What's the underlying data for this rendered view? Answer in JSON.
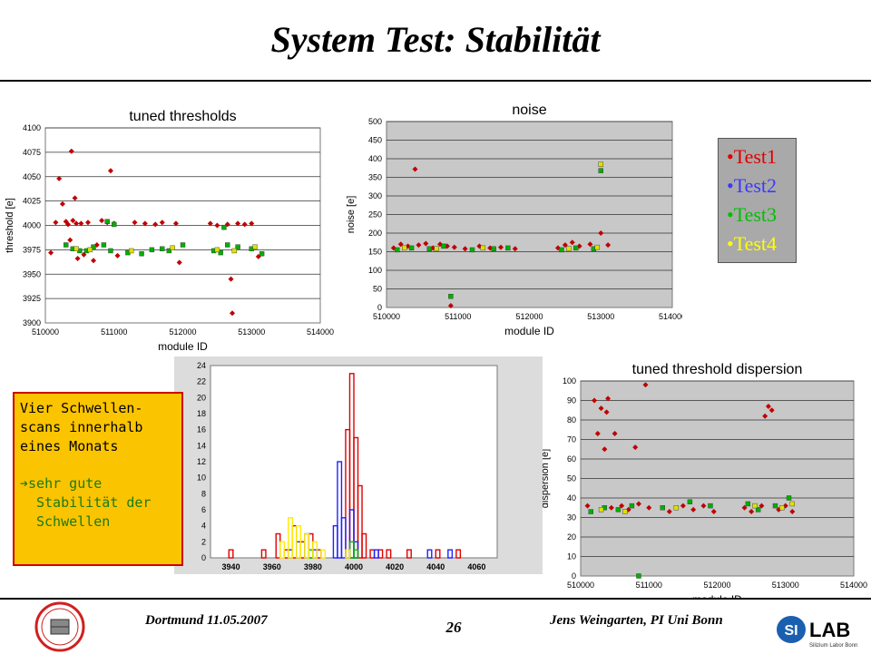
{
  "slide": {
    "title": "System Test: Stabilität",
    "footer_left": "Dortmund 11.05.2007",
    "page_number": "26",
    "footer_right": "Jens Weingarten, PI Uni Bonn",
    "logo_left_text": "ATLAS Pixel Detector Collaboration",
    "logo_right_text": "SILAB",
    "logo_right_sub": "Silizium Labor Bonn"
  },
  "legend": {
    "items": [
      {
        "label": "•Test1",
        "color": "#e00000"
      },
      {
        "label": "•Test2",
        "color": "#3a3aff"
      },
      {
        "label": "•Test3",
        "color": "#00c000"
      },
      {
        "label": "•Test4",
        "color": "#ffff00"
      }
    ]
  },
  "note": {
    "line1": "Vier Schwellen-scans innerhalb eines Monats",
    "line2": "sehr gute Stabilität der Schwellen",
    "arrow": "➔"
  },
  "chart_data": [
    {
      "type": "scatter",
      "title": "tuned thresholds",
      "xlabel": "module ID",
      "ylabel": "threshold [e]",
      "xlim": [
        510000,
        514000
      ],
      "ylim": [
        3900,
        4100
      ],
      "xticks": [
        "510000",
        "511000",
        "512000",
        "513000",
        "514000"
      ],
      "yticks": [
        "3900",
        "3925",
        "3950",
        "3975",
        "4000",
        "4025",
        "4050",
        "4075",
        "4100"
      ],
      "grid": true,
      "series": [
        {
          "color": "#c00000",
          "points": [
            [
              510080,
              3972
            ],
            [
              510150,
              4003
            ],
            [
              510200,
              4048
            ],
            [
              510250,
              4022
            ],
            [
              510300,
              4004
            ],
            [
              510330,
              4001
            ],
            [
              510360,
              3985
            ],
            [
              510380,
              4076
            ],
            [
              510400,
              4005
            ],
            [
              510430,
              4028
            ],
            [
              510450,
              4002
            ],
            [
              510470,
              3966
            ],
            [
              510520,
              4002
            ],
            [
              510560,
              3970
            ],
            [
              510620,
              4003
            ],
            [
              510700,
              3964
            ],
            [
              510750,
              3980
            ],
            [
              510820,
              4005
            ],
            [
              510900,
              4003
            ],
            [
              510950,
              4056
            ],
            [
              511000,
              4002
            ],
            [
              511050,
              3969
            ],
            [
              511300,
              4003
            ],
            [
              511450,
              4002
            ],
            [
              511600,
              4001
            ],
            [
              511700,
              4003
            ],
            [
              511900,
              4002
            ],
            [
              511950,
              3962
            ],
            [
              512400,
              4002
            ],
            [
              512500,
              4000
            ],
            [
              512650,
              4001
            ],
            [
              512700,
              3945
            ],
            [
              512720,
              3910
            ],
            [
              512800,
              4002
            ],
            [
              512900,
              4001
            ],
            [
              513000,
              4002
            ],
            [
              513100,
              3968
            ]
          ]
        },
        {
          "color": "#00b000",
          "points": [
            [
              510300,
              3980
            ],
            [
              510400,
              3976
            ],
            [
              510500,
              3974
            ],
            [
              510600,
              3974
            ],
            [
              510700,
              3978
            ],
            [
              510850,
              3980
            ],
            [
              510950,
              3974
            ],
            [
              511200,
              3972
            ],
            [
              511400,
              3971
            ],
            [
              511550,
              3975
            ],
            [
              511700,
              3976
            ],
            [
              511800,
              3974
            ],
            [
              512000,
              3980
            ],
            [
              512450,
              3974
            ],
            [
              512550,
              3972
            ],
            [
              512650,
              3980
            ],
            [
              512800,
              3978
            ],
            [
              513000,
              3976
            ],
            [
              513150,
              3971
            ],
            [
              511000,
              4001
            ],
            [
              510900,
              4004
            ],
            [
              512600,
              3998
            ]
          ]
        },
        {
          "color": "#e0e000",
          "points": [
            [
              510450,
              3976
            ],
            [
              510650,
              3975
            ],
            [
              511250,
              3974
            ],
            [
              511850,
              3977
            ],
            [
              512500,
              3975
            ],
            [
              512750,
              3974
            ],
            [
              513050,
              3978
            ]
          ]
        }
      ]
    },
    {
      "type": "scatter",
      "title": "noise",
      "xlabel": "module ID",
      "ylabel": "noise [e]",
      "xlim": [
        510000,
        514000
      ],
      "ylim": [
        0,
        500
      ],
      "xticks": [
        "510000",
        "511000",
        "512000",
        "513000",
        "514000"
      ],
      "yticks": [
        "0",
        "50",
        "100",
        "150",
        "200",
        "250",
        "300",
        "350",
        "400",
        "450",
        "500"
      ],
      "grid": true,
      "series": [
        {
          "color": "#c00000",
          "points": [
            [
              510100,
              160
            ],
            [
              510200,
              170
            ],
            [
              510300,
              165
            ],
            [
              510400,
              372
            ],
            [
              510450,
              168
            ],
            [
              510550,
              172
            ],
            [
              510650,
              160
            ],
            [
              510750,
              170
            ],
            [
              510850,
              165
            ],
            [
              510900,
              5
            ],
            [
              510950,
              162
            ],
            [
              511100,
              158
            ],
            [
              511300,
              165
            ],
            [
              511450,
              160
            ],
            [
              511600,
              162
            ],
            [
              511800,
              158
            ],
            [
              512400,
              160
            ],
            [
              512500,
              168
            ],
            [
              512600,
              175
            ],
            [
              512700,
              165
            ],
            [
              512850,
              170
            ],
            [
              513000,
              200
            ],
            [
              513100,
              168
            ]
          ]
        },
        {
          "color": "#00b000",
          "points": [
            [
              510150,
              155
            ],
            [
              510350,
              160
            ],
            [
              510600,
              158
            ],
            [
              510800,
              165
            ],
            [
              510900,
              30
            ],
            [
              511200,
              155
            ],
            [
              511500,
              158
            ],
            [
              511700,
              160
            ],
            [
              512450,
              155
            ],
            [
              512650,
              160
            ],
            [
              512900,
              158
            ],
            [
              513000,
              368
            ]
          ]
        },
        {
          "color": "#e0e000",
          "points": [
            [
              510250,
              160
            ],
            [
              510700,
              158
            ],
            [
              511350,
              160
            ],
            [
              512550,
              158
            ],
            [
              512950,
              162
            ],
            [
              513000,
              385
            ]
          ]
        }
      ]
    },
    {
      "type": "bar",
      "title": "",
      "xlabel": "",
      "ylabel": "",
      "xlim": [
        3930,
        4070
      ],
      "ylim": [
        0,
        24
      ],
      "xticks": [
        "3940",
        "3960",
        "3980",
        "4000",
        "4020",
        "4040",
        "4060"
      ],
      "yticks": [
        "0",
        "2",
        "4",
        "6",
        "8",
        "10",
        "12",
        "14",
        "16",
        "18",
        "20",
        "22",
        "24"
      ],
      "grid": false,
      "series": [
        {
          "color": "#e00000",
          "bins": [
            [
              3939,
              1
            ],
            [
              3955,
              1
            ],
            [
              3962,
              3
            ],
            [
              3966,
              1
            ],
            [
              3970,
              4
            ],
            [
              3974,
              2
            ],
            [
              3978,
              3
            ],
            [
              3982,
              1
            ],
            [
              3996,
              16
            ],
            [
              3998,
              23
            ],
            [
              4000,
              15
            ],
            [
              4002,
              9
            ],
            [
              4004,
              3
            ],
            [
              4008,
              1
            ],
            [
              4012,
              1
            ],
            [
              4016,
              1
            ],
            [
              4026,
              1
            ],
            [
              4040,
              1
            ],
            [
              4050,
              1
            ]
          ]
        },
        {
          "color": "#2020ff",
          "bins": [
            [
              3968,
              1
            ],
            [
              3972,
              2
            ],
            [
              3976,
              3
            ],
            [
              3980,
              1
            ],
            [
              3990,
              4
            ],
            [
              3992,
              12
            ],
            [
              3994,
              5
            ],
            [
              3998,
              6
            ],
            [
              4000,
              2
            ],
            [
              4010,
              1
            ],
            [
              4036,
              1
            ],
            [
              4046,
              1
            ]
          ]
        },
        {
          "color": "#00c000",
          "bins": [
            [
              3978,
              1
            ],
            [
              3998,
              2
            ],
            [
              4000,
              1
            ]
          ]
        },
        {
          "color": "#ffee00",
          "bins": [
            [
              3964,
              2
            ],
            [
              3968,
              5
            ],
            [
              3972,
              4
            ],
            [
              3976,
              3
            ],
            [
              3980,
              2
            ],
            [
              3984,
              1
            ],
            [
              3996,
              1
            ]
          ]
        }
      ]
    },
    {
      "type": "scatter",
      "title": "tuned threshold dispersion",
      "xlabel": "module ID",
      "ylabel": "dispersion [e]",
      "xlim": [
        510000,
        514000
      ],
      "ylim": [
        0,
        100
      ],
      "xticks": [
        "510000",
        "511000",
        "512000",
        "513000",
        "514000"
      ],
      "yticks": [
        "0",
        "10",
        "20",
        "30",
        "40",
        "50",
        "60",
        "70",
        "80",
        "90",
        "100"
      ],
      "grid": true,
      "series": [
        {
          "color": "#c00000",
          "points": [
            [
              510100,
              36
            ],
            [
              510200,
              90
            ],
            [
              510250,
              73
            ],
            [
              510300,
              86
            ],
            [
              510350,
              65
            ],
            [
              510380,
              84
            ],
            [
              510400,
              91
            ],
            [
              510450,
              35
            ],
            [
              510500,
              73
            ],
            [
              510600,
              36
            ],
            [
              510700,
              34
            ],
            [
              510800,
              66
            ],
            [
              510850,
              37
            ],
            [
              510950,
              98
            ],
            [
              511000,
              35
            ],
            [
              511300,
              33
            ],
            [
              511500,
              36
            ],
            [
              511650,
              34
            ],
            [
              511800,
              36
            ],
            [
              511950,
              33
            ],
            [
              512400,
              35
            ],
            [
              512500,
              33
            ],
            [
              512650,
              36
            ],
            [
              512700,
              82
            ],
            [
              512750,
              87
            ],
            [
              512800,
              85
            ],
            [
              512900,
              34
            ],
            [
              513000,
              36
            ],
            [
              513100,
              33
            ]
          ]
        },
        {
          "color": "#00b000",
          "points": [
            [
              510150,
              33
            ],
            [
              510350,
              35
            ],
            [
              510550,
              34
            ],
            [
              510750,
              36
            ],
            [
              510850,
              0
            ],
            [
              511200,
              35
            ],
            [
              511600,
              38
            ],
            [
              511900,
              36
            ],
            [
              512450,
              37
            ],
            [
              512600,
              34
            ],
            [
              512850,
              36
            ],
            [
              513050,
              40
            ]
          ]
        },
        {
          "color": "#e0e000",
          "points": [
            [
              510300,
              34
            ],
            [
              510650,
              33
            ],
            [
              511400,
              35
            ],
            [
              512550,
              36
            ],
            [
              512950,
              35
            ],
            [
              513100,
              37
            ]
          ]
        }
      ]
    }
  ]
}
